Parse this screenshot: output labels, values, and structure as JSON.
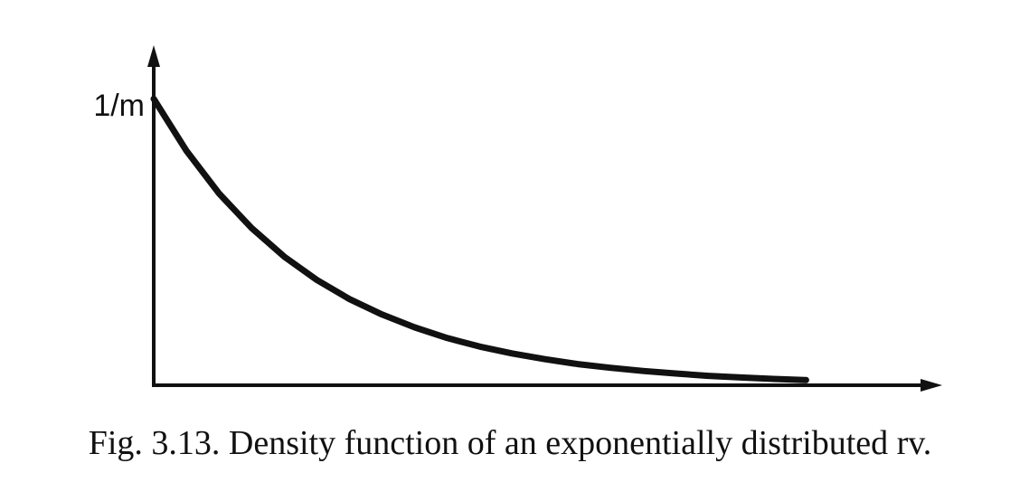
{
  "chart_data": {
    "type": "line",
    "title": "",
    "xlabel": "",
    "ylabel": "",
    "y_tick_label": "1/m",
    "series": [
      {
        "x": [
          0,
          0.5,
          1,
          1.5,
          2,
          2.5,
          3,
          3.5,
          4,
          4.5,
          5,
          5.5,
          6,
          6.5,
          7,
          7.5,
          8,
          8.5,
          9,
          9.5,
          10
        ],
        "values": [
          1.0,
          0.819,
          0.67,
          0.549,
          0.449,
          0.368,
          0.301,
          0.247,
          0.202,
          0.165,
          0.135,
          0.111,
          0.091,
          0.074,
          0.061,
          0.05,
          0.041,
          0.033,
          0.027,
          0.022,
          0.018
        ]
      }
    ],
    "xlim": [
      0,
      11
    ],
    "ylim": [
      0,
      1.2
    ],
    "grid": false,
    "legend": "none"
  },
  "caption": "Fig. 3.13.  Density function of an exponentially distributed rv.",
  "colors": {
    "ink": "#111111",
    "background": "#ffffff"
  }
}
